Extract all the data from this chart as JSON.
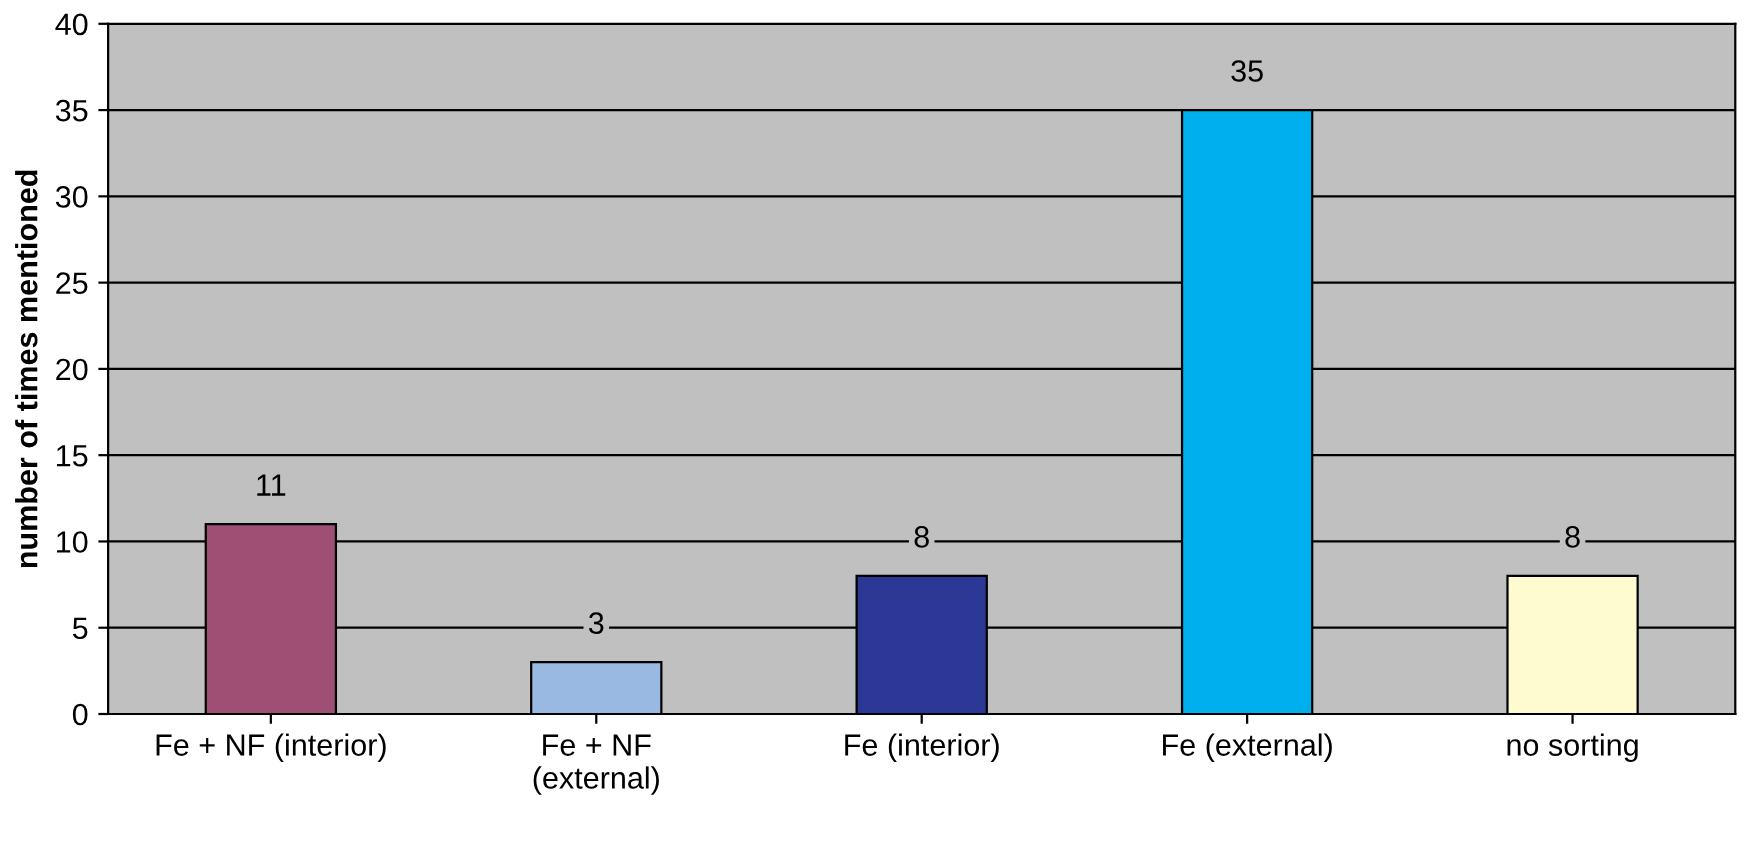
{
  "chart_data": {
    "type": "bar",
    "ylabel": "number of times mentioned",
    "categories": [
      "Fe + NF (interior)",
      "Fe + NF\n(external)",
      "Fe (interior)",
      "Fe (external)",
      "no sorting"
    ],
    "values": [
      11,
      3,
      8,
      35,
      8
    ],
    "colors": [
      "#9e4f73",
      "#99b9e3",
      "#2b3896",
      "#00b0ee",
      "#fffbd1"
    ],
    "ylim": [
      0,
      40
    ],
    "yticks": [
      0,
      5,
      10,
      15,
      20,
      25,
      30,
      35,
      40
    ],
    "grid": "y",
    "data_labels": true
  }
}
